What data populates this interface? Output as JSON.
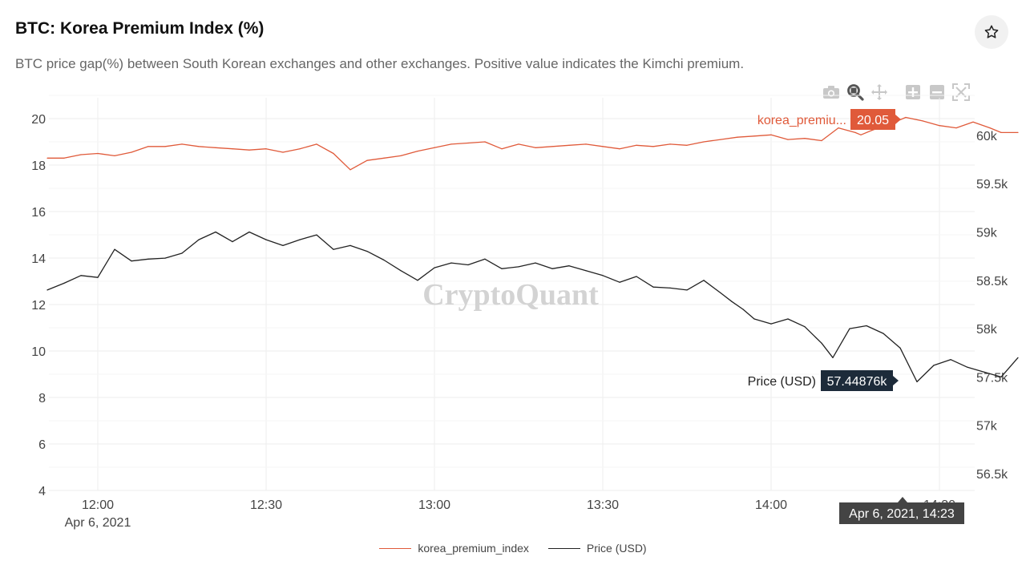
{
  "header": {
    "title": "BTC: Korea Premium Index (%)",
    "subtitle": "BTC price gap(%) between South Korean exchanges and other exchanges. Positive value indicates the Kimchi premium.",
    "favorite_icon": "star-icon"
  },
  "toolbar": {
    "icons": [
      "camera-icon",
      "zoom-icon",
      "pan-icon",
      "zoom-in-icon",
      "zoom-out-icon",
      "autoscale-icon"
    ]
  },
  "watermark": "CryptoQuant",
  "hover": {
    "premium_label": "korea_premiu...",
    "premium_value": "20.05",
    "price_label": "Price (USD)",
    "price_value": "57.44876k",
    "x_label": "Apr 6, 2021, 14:23"
  },
  "colors": {
    "premium": "#e05a3a",
    "price": "#222222",
    "grid": "#eeeeee",
    "price_hover_bg": "#1d2b3a",
    "x_hover_bg": "#444444"
  },
  "chart_data": {
    "type": "line",
    "x_ticks": [
      "12:00",
      "12:30",
      "13:00",
      "13:30",
      "14:00",
      "14:30"
    ],
    "x_tick_subtitle": "Apr 6, 2021",
    "y_left_ticks": [
      "4",
      "6",
      "8",
      "10",
      "12",
      "14",
      "16",
      "18",
      "20"
    ],
    "y_right_ticks": [
      "56.5k",
      "57k",
      "57.5k",
      "58k",
      "58.5k",
      "59k",
      "59.5k",
      "60k"
    ],
    "ylim_left": [
      4,
      21
    ],
    "ylim_right": [
      56.4,
      60.4
    ],
    "grid": true,
    "legend_position": "bottom-center",
    "x_unit": "minutes after 12:00 on Apr 6, 2021",
    "series": [
      {
        "name": "korea_premium_index",
        "axis": "left",
        "x": [
          -9,
          -6,
          -3,
          0,
          3,
          6,
          9,
          12,
          15,
          18,
          21,
          24,
          27,
          30,
          33,
          36,
          39,
          42,
          45,
          48,
          51,
          54,
          57,
          60,
          63,
          66,
          69,
          72,
          75,
          78,
          81,
          84,
          87,
          90,
          93,
          96,
          99,
          102,
          105,
          108,
          111,
          114,
          117,
          120,
          123,
          126,
          129,
          132,
          135,
          136,
          138,
          141,
          144,
          147,
          150,
          153,
          156,
          159,
          161,
          164
        ],
        "values": [
          18.3,
          18.3,
          18.45,
          18.5,
          18.4,
          18.55,
          18.8,
          18.8,
          18.9,
          18.8,
          18.75,
          18.7,
          18.65,
          18.7,
          18.55,
          18.7,
          18.9,
          18.5,
          17.8,
          18.2,
          18.3,
          18.4,
          18.6,
          18.75,
          18.9,
          18.95,
          19.0,
          18.7,
          18.9,
          18.75,
          18.8,
          18.85,
          18.9,
          18.8,
          18.7,
          18.85,
          18.8,
          18.9,
          18.85,
          19.0,
          19.1,
          19.2,
          19.25,
          19.3,
          19.1,
          19.15,
          19.05,
          19.6,
          19.4,
          19.3,
          19.5,
          19.75,
          20.05,
          19.9,
          19.7,
          19.6,
          19.85,
          19.6,
          19.4,
          19.4
        ]
      },
      {
        "name": "Price (USD)",
        "axis": "right",
        "x": [
          -9,
          -6,
          -3,
          0,
          3,
          6,
          9,
          12,
          15,
          18,
          21,
          24,
          27,
          30,
          33,
          36,
          39,
          42,
          45,
          48,
          51,
          54,
          57,
          60,
          63,
          66,
          69,
          72,
          75,
          78,
          81,
          84,
          87,
          90,
          93,
          96,
          99,
          102,
          105,
          108,
          111,
          113,
          115,
          117,
          120,
          123,
          126,
          129,
          131,
          134,
          137,
          140,
          143,
          146,
          149,
          152,
          155,
          158,
          161,
          164
        ],
        "values": [
          58.4,
          58.47,
          58.55,
          58.53,
          58.82,
          58.7,
          58.72,
          58.73,
          58.78,
          58.92,
          59.0,
          58.9,
          59.0,
          58.92,
          58.86,
          58.92,
          58.97,
          58.82,
          58.86,
          58.8,
          58.71,
          58.6,
          58.5,
          58.63,
          58.68,
          58.66,
          58.72,
          58.62,
          58.64,
          58.68,
          58.62,
          58.65,
          58.6,
          58.55,
          58.48,
          58.54,
          58.43,
          58.42,
          58.4,
          58.5,
          58.37,
          58.28,
          58.2,
          58.1,
          58.05,
          58.1,
          58.02,
          57.85,
          57.7,
          58.0,
          58.03,
          57.95,
          57.8,
          57.45,
          57.62,
          57.68,
          57.6,
          57.55,
          57.5,
          57.7
        ]
      }
    ]
  },
  "legend": {
    "items": [
      "korea_premium_index",
      "Price (USD)"
    ]
  }
}
